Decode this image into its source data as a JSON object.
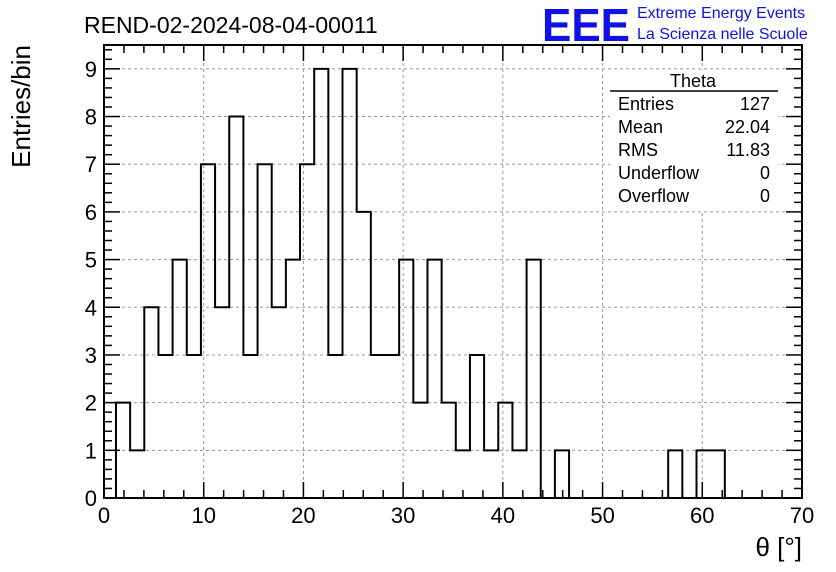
{
  "header": {
    "run_title": "REND-02-2024-08-04-00011",
    "logo_text": "EEE",
    "logo_line1": "Extreme Energy Events",
    "logo_line2": "La Scienza nelle Scuole",
    "logo_color": "#1010e8"
  },
  "stats_box": {
    "title": "Theta",
    "rows": [
      {
        "label": "Entries",
        "value": "127"
      },
      {
        "label": "Mean",
        "value": "22.04"
      },
      {
        "label": "RMS",
        "value": "11.83"
      },
      {
        "label": "Underflow",
        "value": "0"
      },
      {
        "label": "Overflow",
        "value": "0"
      }
    ]
  },
  "chart_data": {
    "type": "bar",
    "histogram": true,
    "title": "REND-02-2024-08-04-00011",
    "xlabel": "θ [°]",
    "ylabel": "Entries/bin",
    "xlim": [
      0,
      70
    ],
    "ylim": [
      0,
      9.5
    ],
    "x_ticks": [
      0,
      10,
      20,
      30,
      40,
      50,
      60,
      70
    ],
    "y_ticks": [
      0,
      1,
      2,
      3,
      4,
      5,
      6,
      7,
      8,
      9
    ],
    "grid": true,
    "bin_edges_start": 1.2,
    "bin_width": 1.42,
    "values": [
      2,
      1,
      4,
      3,
      5,
      3,
      7,
      4,
      8,
      3,
      7,
      4,
      5,
      7,
      9,
      3,
      9,
      6,
      3,
      3,
      5,
      2,
      5,
      2,
      1,
      3,
      1,
      2,
      1,
      5,
      0,
      1,
      0,
      0,
      0,
      0,
      0,
      0,
      0,
      1,
      0,
      1,
      1,
      0
    ]
  }
}
